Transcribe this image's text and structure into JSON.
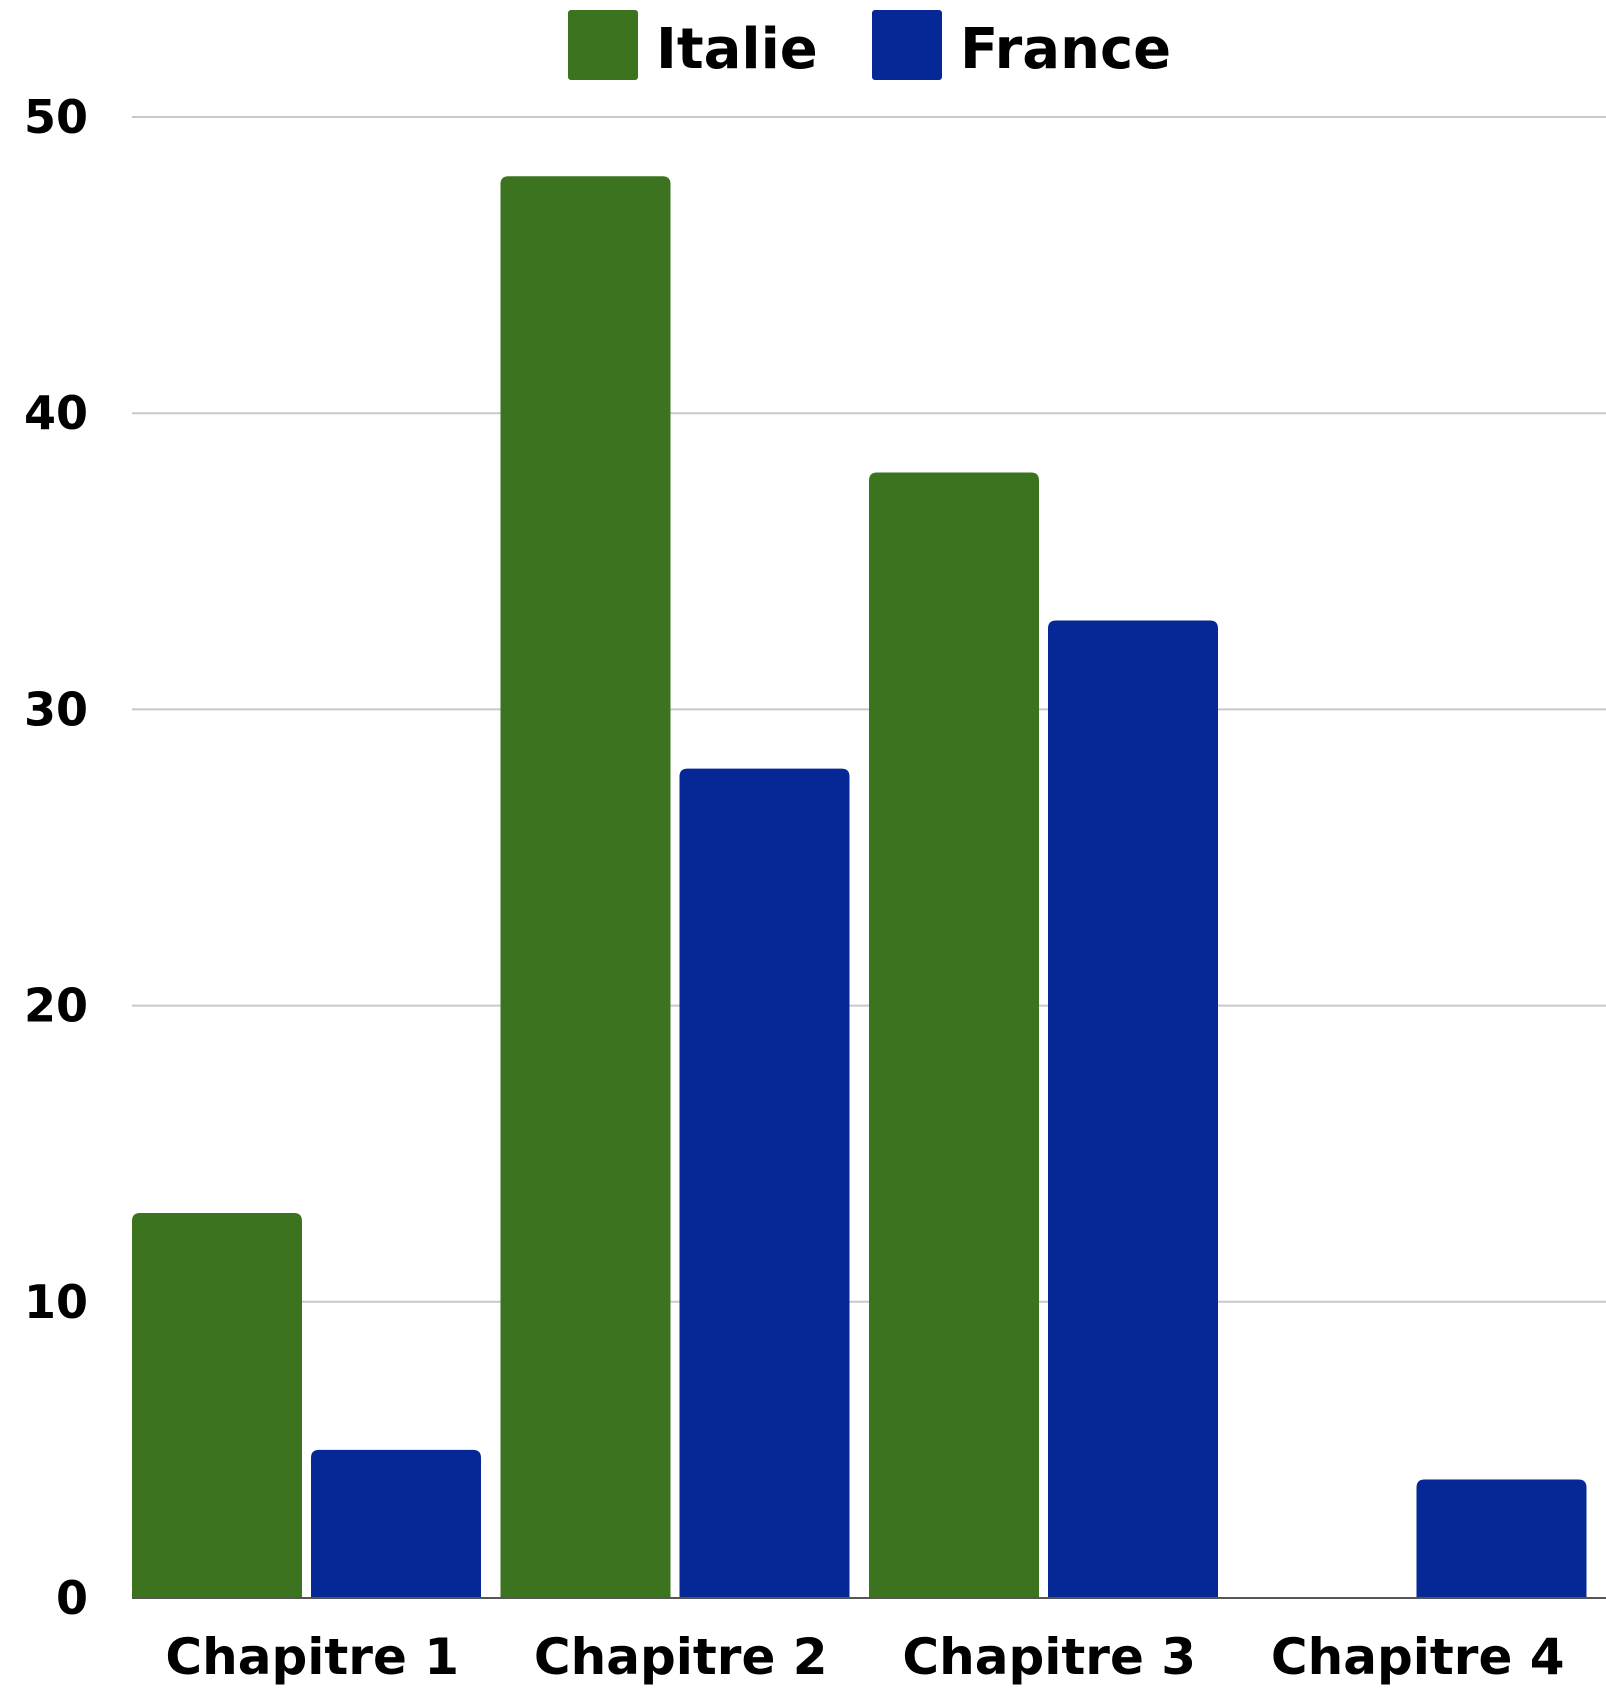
{
  "chart_data": {
    "type": "bar",
    "title": "",
    "xlabel": "",
    "ylabel": "",
    "categories": [
      "Chapitre 1",
      "Chapitre 2",
      "Chapitre 3",
      "Chapitre 4"
    ],
    "series": [
      {
        "name": "Italie",
        "color": "#3b731f",
        "values": [
          13,
          48,
          38,
          0
        ]
      },
      {
        "name": "France",
        "color": "#062796",
        "values": [
          5,
          28,
          33,
          4
        ]
      }
    ],
    "ylim": [
      0,
      50
    ],
    "yticks": [
      "0",
      "10",
      "20",
      "30",
      "40",
      "50"
    ],
    "grid": true,
    "legend_position": "top-center"
  }
}
